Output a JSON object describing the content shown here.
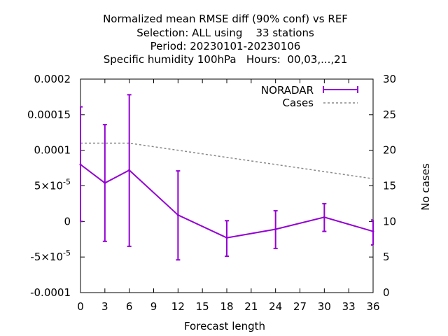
{
  "chart_data": {
    "type": "line",
    "title_lines": [
      "Normalized mean RMSE diff (90% conf) vs REF",
      "Selection: ALL using    33 stations",
      "Period: 20230101-20230106",
      "Specific humidity 100hPa   Hours:  00,03,...,21"
    ],
    "xlabel": "Forecast length",
    "ylabel": "",
    "y2label": "No cases",
    "xlim": [
      0,
      36
    ],
    "ylim": [
      -0.0001,
      0.0002
    ],
    "y2lim": [
      0,
      30
    ],
    "x_ticks": [
      0,
      3,
      6,
      9,
      12,
      15,
      18,
      21,
      24,
      27,
      30,
      33,
      36
    ],
    "y_ticks": [
      -0.0001,
      -5e-05,
      0,
      5e-05,
      0.0001,
      0.00015,
      0.0002
    ],
    "y_tick_labels": [
      "-0.0001",
      "-5×10",
      "0",
      "5×10",
      "0.0001",
      "0.00015",
      "0.0002"
    ],
    "y_tick_exponents": [
      "",
      "-5",
      "",
      "-5",
      "",
      "",
      ""
    ],
    "y2_ticks": [
      0,
      5,
      10,
      15,
      20,
      25,
      30
    ],
    "y2_tick_labels": [
      "0",
      "5",
      "10",
      "15",
      "20",
      "25",
      "30"
    ],
    "grid": false,
    "legend_position": "top-right",
    "series": [
      {
        "name": "NORADAR",
        "color": "#9400d3",
        "x": [
          0,
          3,
          6,
          12,
          18,
          24,
          30,
          36
        ],
        "y": [
          8e-05,
          5.4e-05,
          7.2e-05,
          9e-06,
          -2.3e-05,
          -1.1e-05,
          6e-06,
          -1.4e-05
        ],
        "err_low": [
          0.0,
          -2.8e-05,
          -3.5e-05,
          -5.4e-05,
          -4.9e-05,
          -3.8e-05,
          -1.4e-05,
          -3.3e-05
        ],
        "err_high": [
          0.000161,
          0.000136,
          0.000178,
          7.1e-05,
          1e-06,
          1.5e-05,
          2.5e-05,
          2e-06
        ]
      },
      {
        "name": "Cases",
        "color": "#888888",
        "axis": "y2",
        "x": [
          0,
          3,
          6,
          12,
          18,
          24,
          30,
          36
        ],
        "y": [
          21,
          21,
          21,
          20,
          19,
          18,
          17,
          16
        ]
      }
    ]
  }
}
